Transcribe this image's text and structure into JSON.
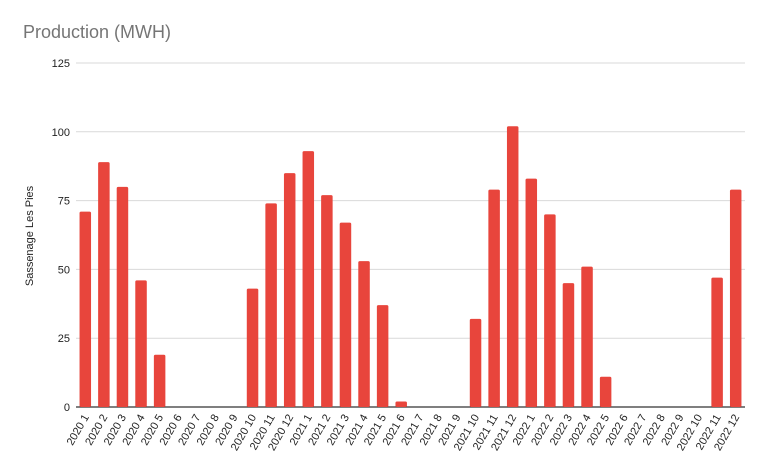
{
  "chart_data": {
    "type": "bar",
    "title": "Production (MWH)",
    "xlabel": "",
    "ylabel": "Sassenage Les Pies",
    "ylim": [
      0,
      125
    ],
    "yticks": [
      "0",
      "25",
      "50",
      "75",
      "100",
      "125"
    ],
    "grid": true,
    "legend": "none",
    "bar_color": "#e8453c",
    "categories": [
      "2020 1",
      "2020 2",
      "2020 3",
      "2020 4",
      "2020 5",
      "2020 6",
      "2020 7",
      "2020 8",
      "2020 9",
      "2020 10",
      "2020 11",
      "2020 12",
      "2021 1",
      "2021 2",
      "2021 3",
      "2021 4",
      "2021 5",
      "2021 6",
      "2021 7",
      "2021 8",
      "2021 9",
      "2021 10",
      "2021 11",
      "2021 12",
      "2022 1",
      "2022 2",
      "2022 3",
      "2022 4",
      "2022 5",
      "2022 6",
      "2022 7",
      "2022 8",
      "2022 9",
      "2022 10",
      "2022 11",
      "2022 12"
    ],
    "values": [
      71,
      89,
      80,
      46,
      19,
      0,
      0,
      0,
      0,
      43,
      74,
      85,
      93,
      77,
      67,
      53,
      37,
      2,
      0,
      0,
      0,
      32,
      79,
      102,
      83,
      70,
      45,
      51,
      11,
      0,
      0,
      0,
      0,
      0,
      47,
      79
    ]
  }
}
